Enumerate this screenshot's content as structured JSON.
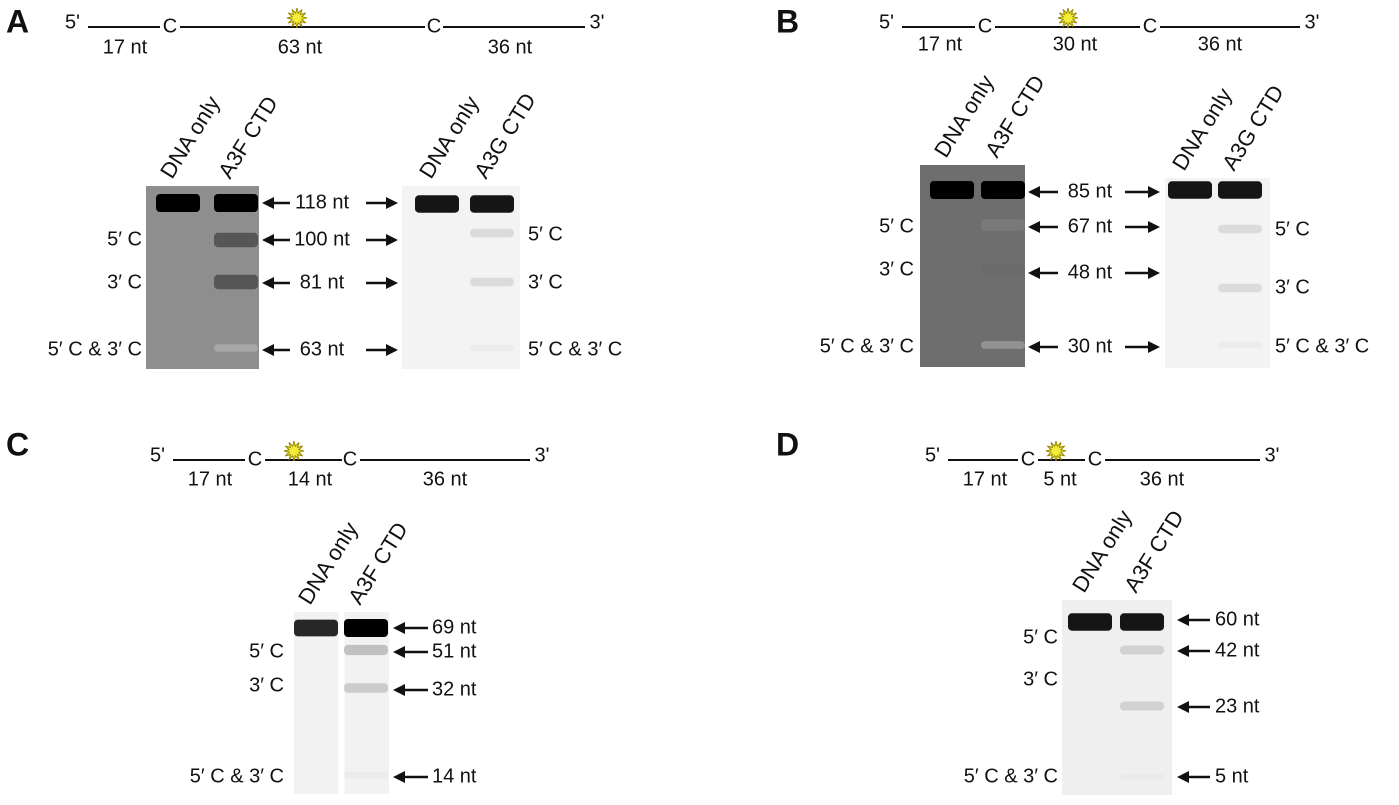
{
  "panels": [
    {
      "label": "A",
      "diagram": {
        "five_prime": "5'",
        "three_prime": "3'",
        "cytosines": [
          "C",
          "C"
        ],
        "segments": [
          "17 nt",
          "63 nt",
          "36 nt"
        ]
      },
      "gels": [
        {
          "lanes": [
            "DNA only",
            "A3F CTD"
          ],
          "sites": [
            "5′ C",
            "3′ C",
            "5′ C & 3′ C"
          ]
        },
        {
          "lanes": [
            "DNA only",
            "A3G CTD"
          ],
          "sites": [
            "5′ C",
            "3′ C",
            "5′ C & 3′ C"
          ]
        }
      ],
      "sizes": [
        "118 nt",
        "100 nt",
        "81 nt",
        "63 nt"
      ]
    },
    {
      "label": "B",
      "diagram": {
        "five_prime": "5'",
        "three_prime": "3'",
        "cytosines": [
          "C",
          "C"
        ],
        "segments": [
          "17 nt",
          "30 nt",
          "36 nt"
        ]
      },
      "gels": [
        {
          "lanes": [
            "DNA only",
            "A3F CTD"
          ],
          "sites": [
            "5′ C",
            "3′ C",
            "5′ C & 3′ C"
          ]
        },
        {
          "lanes": [
            "DNA only",
            "A3G CTD"
          ],
          "sites": [
            "5′ C",
            "3′ C",
            "5′ C & 3′ C"
          ]
        }
      ],
      "sizes": [
        "85 nt",
        "67 nt",
        "48 nt",
        "30 nt"
      ]
    },
    {
      "label": "C",
      "diagram": {
        "five_prime": "5'",
        "three_prime": "3'",
        "cytosines": [
          "C",
          "C"
        ],
        "segments": [
          "17 nt",
          "14 nt",
          "36 nt"
        ]
      },
      "gels": [
        {
          "lanes": [
            "DNA only",
            "A3F CTD"
          ],
          "sites": [
            "5′ C",
            "3′ C",
            "5′ C & 3′ C"
          ]
        }
      ],
      "sizes": [
        "69 nt",
        "51 nt",
        "32 nt",
        "14 nt"
      ]
    },
    {
      "label": "D",
      "diagram": {
        "five_prime": "5'",
        "three_prime": "3'",
        "cytosines": [
          "C",
          "C"
        ],
        "segments": [
          "17 nt",
          "5 nt",
          "36 nt"
        ]
      },
      "gels": [
        {
          "lanes": [
            "DNA only",
            "A3F CTD"
          ],
          "sites": [
            "5′ C",
            "3′ C",
            "5′ C & 3′ C"
          ]
        }
      ],
      "sizes": [
        "60 nt",
        "42 nt",
        "23 nt",
        "5 nt"
      ]
    }
  ]
}
